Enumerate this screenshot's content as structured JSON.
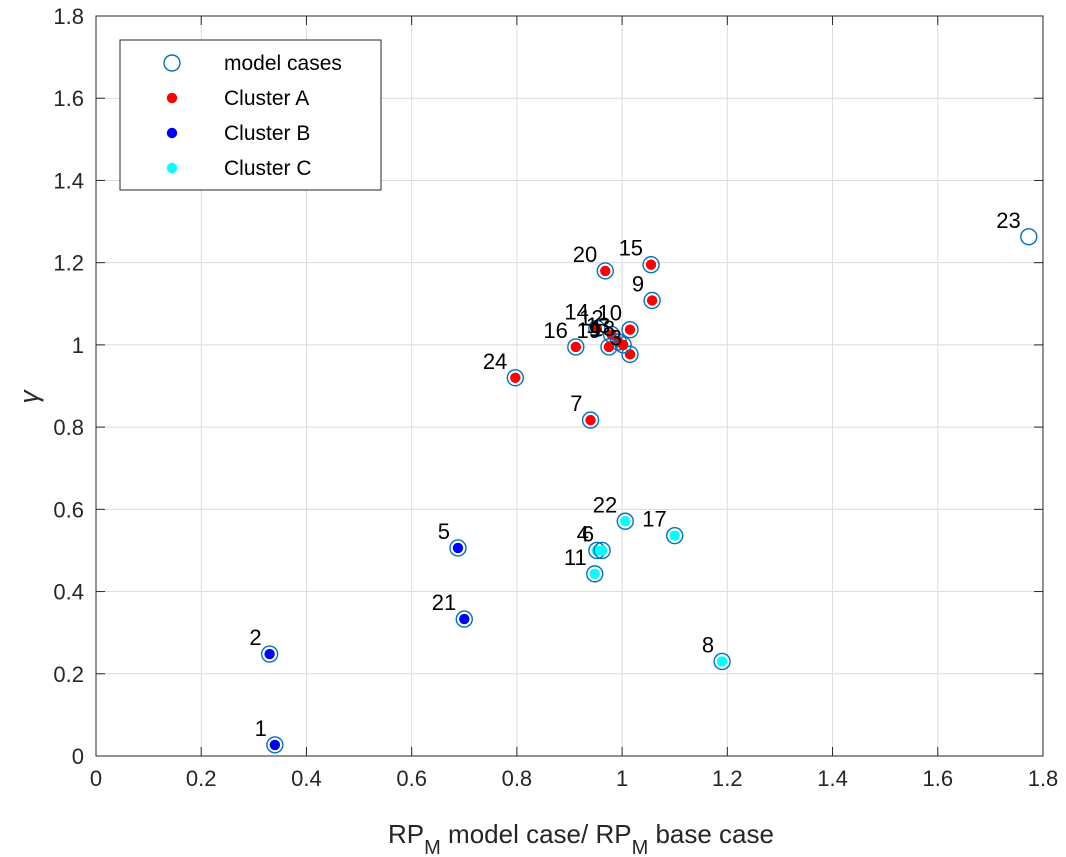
{
  "chart_data": {
    "type": "scatter",
    "xlabel": "RP_M model case/ RP_M base case",
    "xlabel_parts": {
      "a": "RP",
      "a_sub": "M",
      "b": " model case/ RP",
      "b_sub": "M",
      "c": " base case"
    },
    "ylabel": "γ",
    "xlim": [
      0,
      1.8
    ],
    "ylim": [
      0,
      1.8
    ],
    "xticks": [
      "0",
      "0.2",
      "0.4",
      "0.6",
      "0.8",
      "1",
      "1.2",
      "1.4",
      "1.6",
      "1.8"
    ],
    "yticks": [
      "0",
      "0.2",
      "0.4",
      "0.6",
      "0.8",
      "1",
      "1.2",
      "1.4",
      "1.6",
      "1.8"
    ],
    "grid": true,
    "legend_position": "top-left",
    "colors": {
      "model_ring": "#0072BD",
      "cluster_a": "#FF0000",
      "cluster_b": "#0000FF",
      "cluster_c": "#00FFFF"
    },
    "legend": [
      {
        "label": "model cases",
        "marker": "ring"
      },
      {
        "label": "Cluster A",
        "marker": "cluster_a"
      },
      {
        "label": "Cluster B",
        "marker": "cluster_b"
      },
      {
        "label": "Cluster C",
        "marker": "cluster_c"
      }
    ],
    "points": [
      {
        "id": "1",
        "x": 0.34,
        "y": 0.027,
        "cluster": "B"
      },
      {
        "id": "2",
        "x": 0.33,
        "y": 0.248,
        "cluster": "B"
      },
      {
        "id": "3",
        "x": 1.015,
        "y": 0.977,
        "cluster": "A"
      },
      {
        "id": "4",
        "x": 0.952,
        "y": 0.5,
        "cluster": "C"
      },
      {
        "id": "5",
        "x": 0.688,
        "y": 0.506,
        "cluster": "B"
      },
      {
        "id": "6",
        "x": 0.962,
        "y": 0.5,
        "cluster": "C"
      },
      {
        "id": "7",
        "x": 0.94,
        "y": 0.817,
        "cluster": "A"
      },
      {
        "id": "8",
        "x": 1.19,
        "y": 0.23,
        "cluster": "C"
      },
      {
        "id": "9",
        "x": 1.057,
        "y": 1.108,
        "cluster": "A"
      },
      {
        "id": "10",
        "x": 1.015,
        "y": 1.037,
        "cluster": "A"
      },
      {
        "id": "11",
        "x": 0.948,
        "y": 0.443,
        "cluster": "C"
      },
      {
        "id": "12",
        "x": 0.98,
        "y": 1.025,
        "cluster": "A"
      },
      {
        "id": "13",
        "x": 0.993,
        "y": 1.007,
        "cluster": "A"
      },
      {
        "id": "14",
        "x": 0.952,
        "y": 1.04,
        "cluster": "A"
      },
      {
        "id": "15",
        "x": 1.055,
        "y": 1.195,
        "cluster": "A"
      },
      {
        "id": "16",
        "x": 0.912,
        "y": 0.995,
        "cluster": "A"
      },
      {
        "id": "17",
        "x": 1.1,
        "y": 0.536,
        "cluster": "C"
      },
      {
        "id": "18",
        "x": 1.002,
        "y": 1.0,
        "cluster": "A"
      },
      {
        "id": "19",
        "x": 0.975,
        "y": 0.995,
        "cluster": "A"
      },
      {
        "id": "20",
        "x": 0.968,
        "y": 1.18,
        "cluster": "A"
      },
      {
        "id": "21",
        "x": 0.7,
        "y": 0.333,
        "cluster": "B"
      },
      {
        "id": "22",
        "x": 1.006,
        "y": 0.571,
        "cluster": "C"
      },
      {
        "id": "23",
        "x": 1.773,
        "y": 1.263,
        "cluster": "none"
      },
      {
        "id": "24",
        "x": 0.797,
        "y": 0.92,
        "cluster": "A"
      }
    ]
  }
}
